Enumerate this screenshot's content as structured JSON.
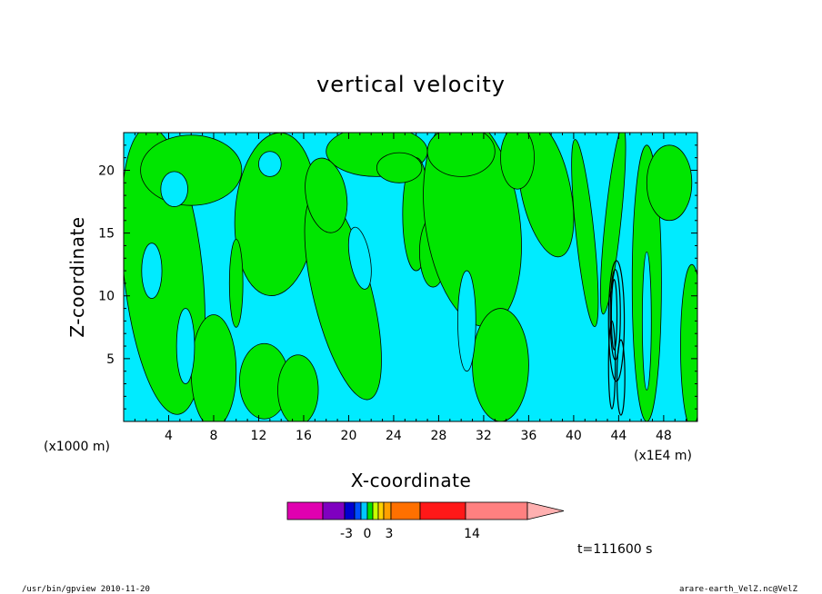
{
  "chart_data": {
    "type": "heatmap",
    "title": "vertical velocity",
    "xlabel": "X-coordinate",
    "ylabel": "Z-coordinate",
    "x_scale_label": "(x1000 m)",
    "x_scale_label2": "(x1E4 m)",
    "x_ticks": [
      "4",
      "8",
      "12",
      "16",
      "20",
      "24",
      "28",
      "32",
      "36",
      "40",
      "44",
      "48"
    ],
    "y_ticks": [
      "5",
      "10",
      "15",
      "20"
    ],
    "xlim": [
      0,
      51
    ],
    "ylim": [
      0,
      23
    ],
    "time_label": "t=111600 s",
    "colorbar": {
      "labels": [
        "-3",
        "0",
        "3",
        "14"
      ],
      "colors": [
        "#e000b0",
        "#7f00c0",
        "#0000d0",
        "#0050ff",
        "#00c8ff",
        "#00e000",
        "#c8ff00",
        "#ffd000",
        "#ffa000",
        "#ff7000",
        "#ff1818",
        "#ff8080",
        "#ffb0b0"
      ]
    },
    "fill_colors": {
      "negative": "#00ebff",
      "positive": "#00e600"
    }
  },
  "footer": {
    "left": "/usr/bin/gpview   2010-11-20",
    "right": "arare-earth_VelZ.nc@VelZ"
  }
}
